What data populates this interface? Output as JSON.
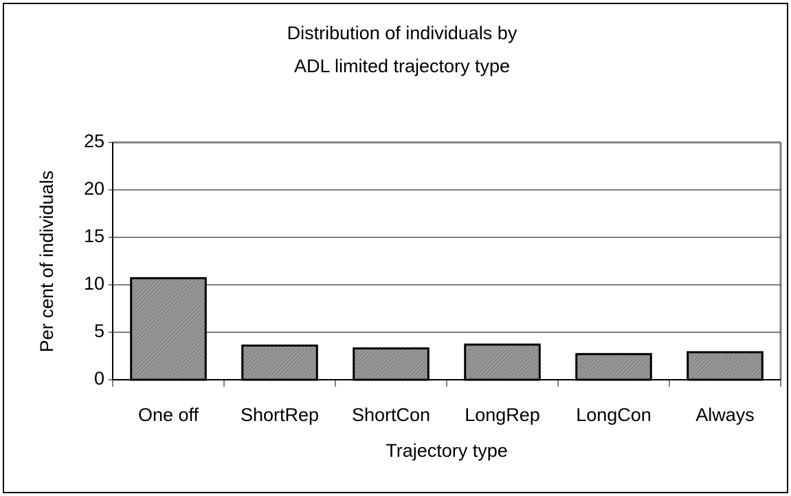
{
  "chart_data": {
    "type": "bar",
    "title": [
      "Distribution of individuals by",
      "ADL limited trajectory type"
    ],
    "x_label": "Trajectory type",
    "y_label": "Per cent of individuals",
    "categories": [
      "One off",
      "ShortRep",
      "ShortCon",
      "LongRep",
      "LongCon",
      "Always"
    ],
    "values": [
      10.7,
      3.6,
      3.3,
      3.7,
      2.7,
      2.9
    ],
    "color": "#8c8c8c",
    "ylim": [
      0,
      25
    ],
    "yticks": [
      0,
      5,
      10,
      15,
      20,
      25
    ],
    "grid": true
  }
}
